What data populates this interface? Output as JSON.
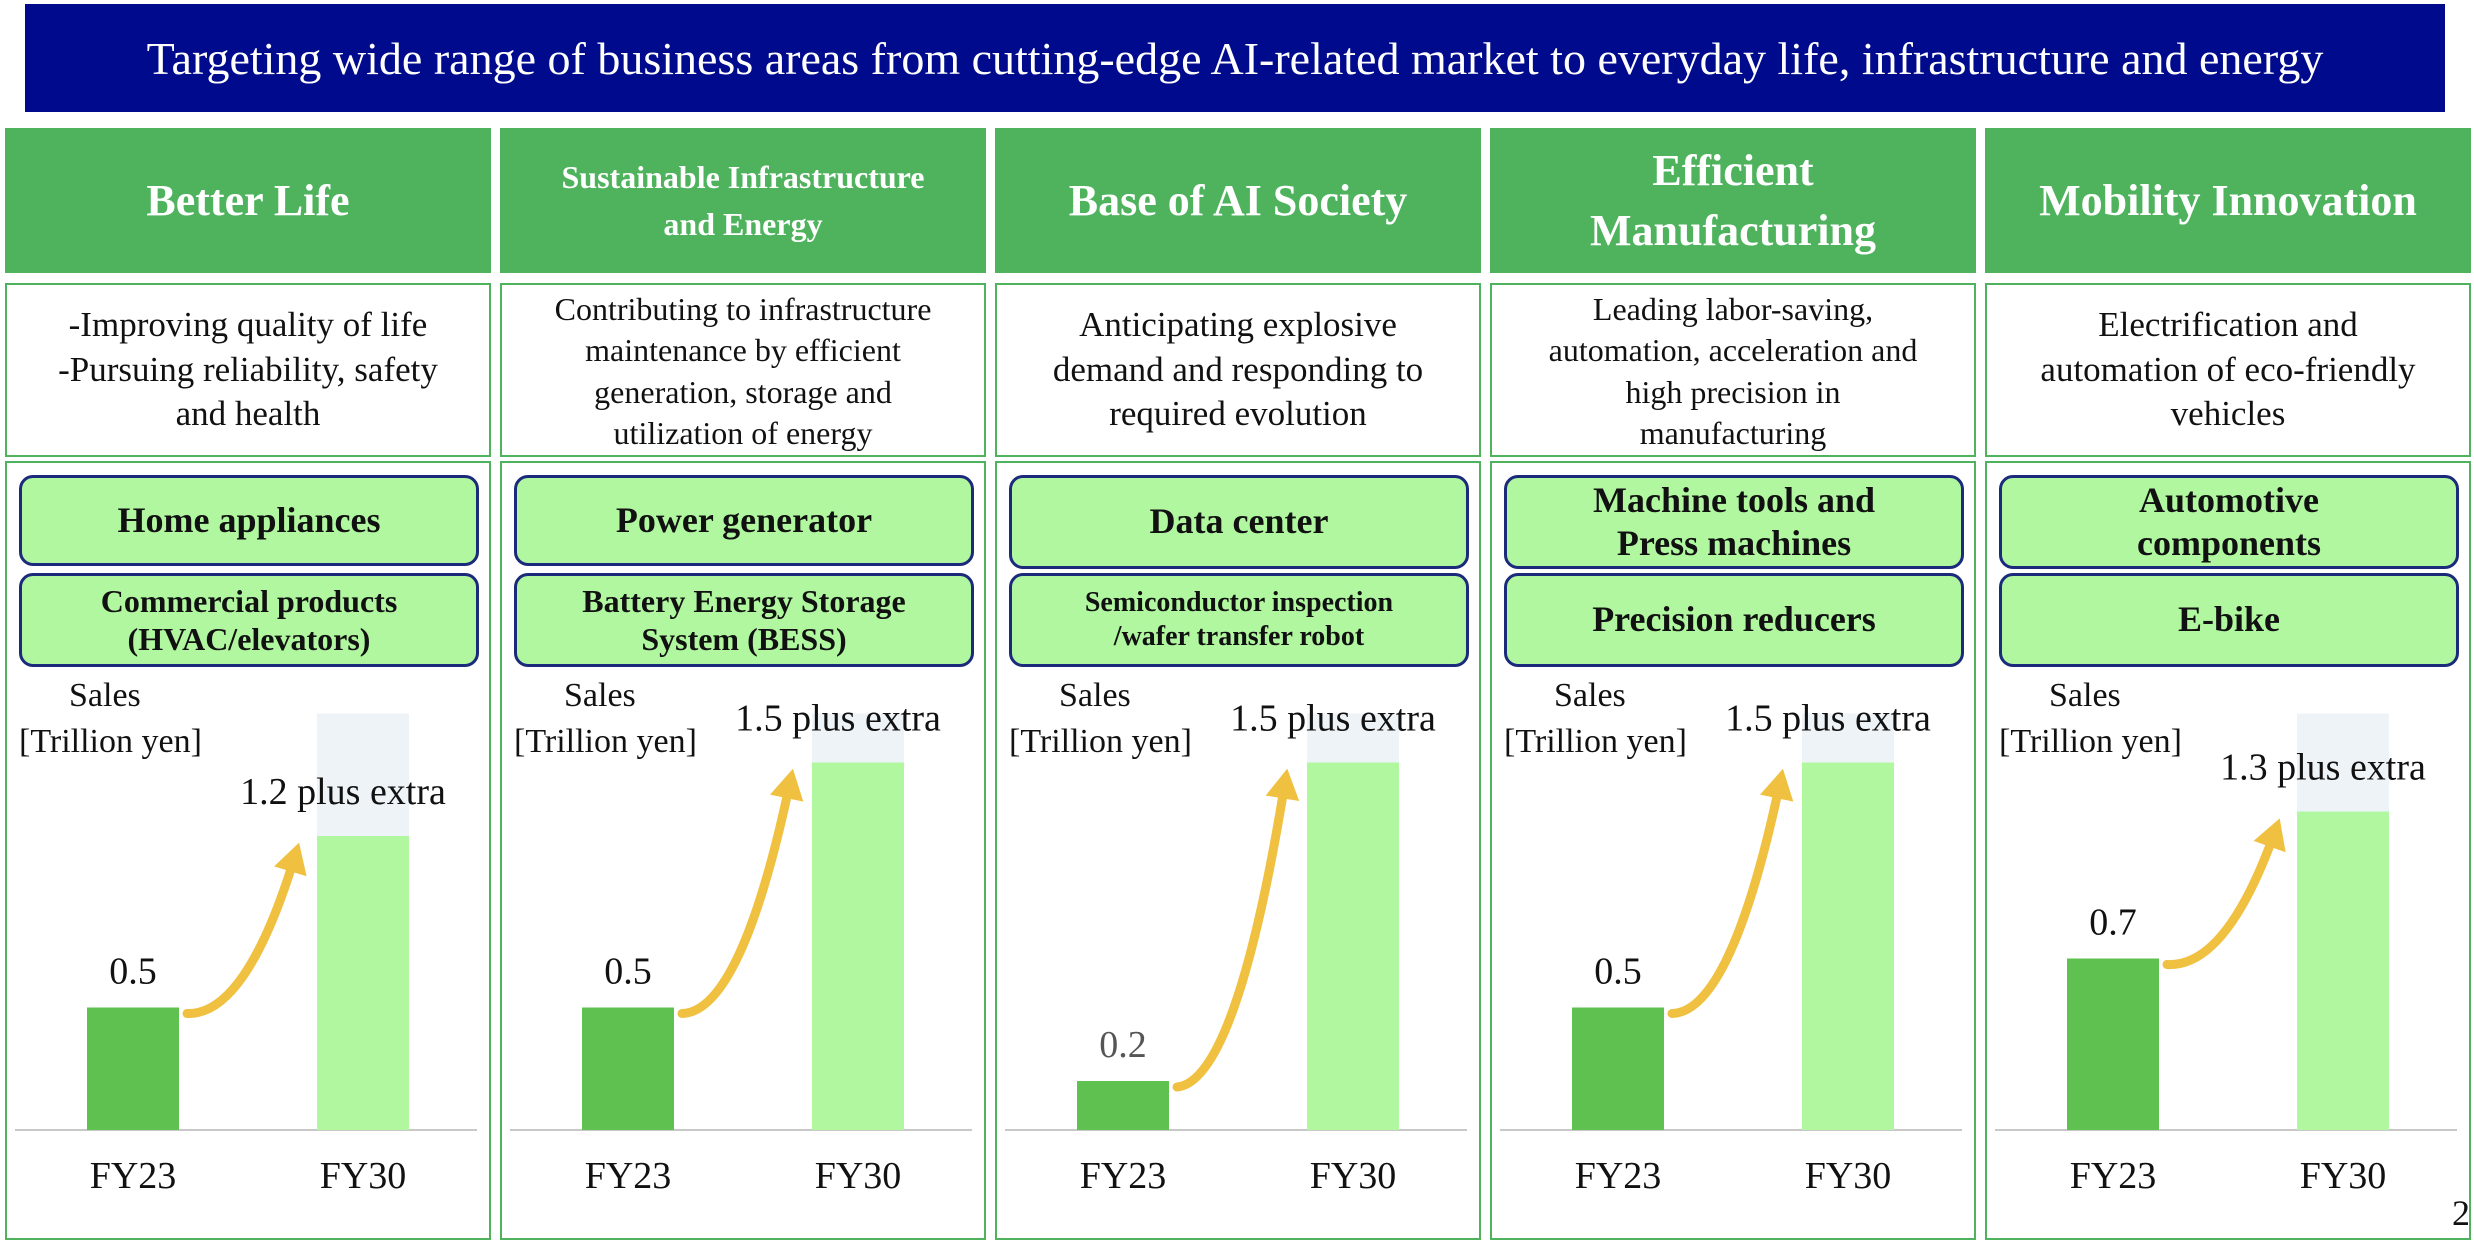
{
  "banner": "Targeting wide range of business areas from cutting-edge AI-related market to everyday life, infrastructure and energy",
  "page_number": "2",
  "colors": {
    "banner": "#000a8c",
    "header_green": "#4fb35e",
    "pill_fill": "#b0f7a0",
    "pill_border": "#1b2a7a",
    "bar_fy23": "#5fc250",
    "bar_fy30": "#b0f7a0",
    "bar_fy30_extra": "#eef3f8",
    "arrow": "#f0c040"
  },
  "columns": [
    {
      "title_lines": [
        "Better Life"
      ],
      "description": [
        "-Improving quality of life",
        "-Pursuing reliability, safety",
        "and health"
      ],
      "items": [
        [
          "Home appliances"
        ],
        [
          "Commercial products",
          "(HVAC/elevators)"
        ]
      ],
      "sales_label": [
        "Sales",
        "[Trillion yen]"
      ]
    },
    {
      "title_lines": [
        "Sustainable Infrastructure",
        "and Energy"
      ],
      "description": [
        "Contributing to infrastructure",
        "maintenance by efficient",
        "generation, storage and",
        "utilization of energy"
      ],
      "items": [
        [
          "Power generator"
        ],
        [
          "Battery Energy Storage",
          "System (BESS)"
        ]
      ],
      "sales_label": [
        "Sales",
        "[Trillion yen]"
      ]
    },
    {
      "title_lines": [
        "Base of AI Society"
      ],
      "description": [
        "Anticipating explosive",
        "demand and responding to",
        "required evolution"
      ],
      "items": [
        [
          "Data center"
        ],
        [
          "Semiconductor inspection",
          "/wafer transfer robot"
        ]
      ],
      "sales_label": [
        "Sales",
        "[Trillion yen]"
      ]
    },
    {
      "title_lines": [
        "Efficient",
        "Manufacturing"
      ],
      "description": [
        "Leading labor-saving,",
        "automation, acceleration and",
        "high precision in",
        "manufacturing"
      ],
      "items": [
        [
          "Machine tools and",
          "Press machines"
        ],
        [
          "Precision reducers"
        ]
      ],
      "sales_label": [
        "Sales",
        "[Trillion yen]"
      ]
    },
    {
      "title_lines": [
        "Mobility Innovation"
      ],
      "description": [
        "Electrification and",
        "automation of eco-friendly",
        "vehicles"
      ],
      "items": [
        [
          "Automotive",
          "components"
        ],
        [
          "E-bike"
        ]
      ],
      "sales_label": [
        "Sales",
        "[Trillion yen]"
      ]
    }
  ],
  "chart_data": [
    {
      "type": "bar",
      "categories": [
        "FY23",
        "FY30"
      ],
      "values": [
        0.5,
        1.2
      ],
      "labels": [
        "0.5",
        "1.2 plus extra"
      ]
    },
    {
      "type": "bar",
      "categories": [
        "FY23",
        "FY30"
      ],
      "values": [
        0.5,
        1.5
      ],
      "labels": [
        "0.5",
        "1.5 plus extra"
      ]
    },
    {
      "type": "bar",
      "categories": [
        "FY23",
        "FY30"
      ],
      "values": [
        0.2,
        1.5
      ],
      "labels": [
        "0.2",
        "1.5 plus extra"
      ]
    },
    {
      "type": "bar",
      "categories": [
        "FY23",
        "FY30"
      ],
      "values": [
        0.5,
        1.5
      ],
      "labels": [
        "0.5",
        "1.5 plus extra"
      ]
    },
    {
      "type": "bar",
      "categories": [
        "FY23",
        "FY30"
      ],
      "values": [
        0.7,
        1.3
      ],
      "labels": [
        "0.7",
        "1.3 plus extra"
      ]
    }
  ]
}
